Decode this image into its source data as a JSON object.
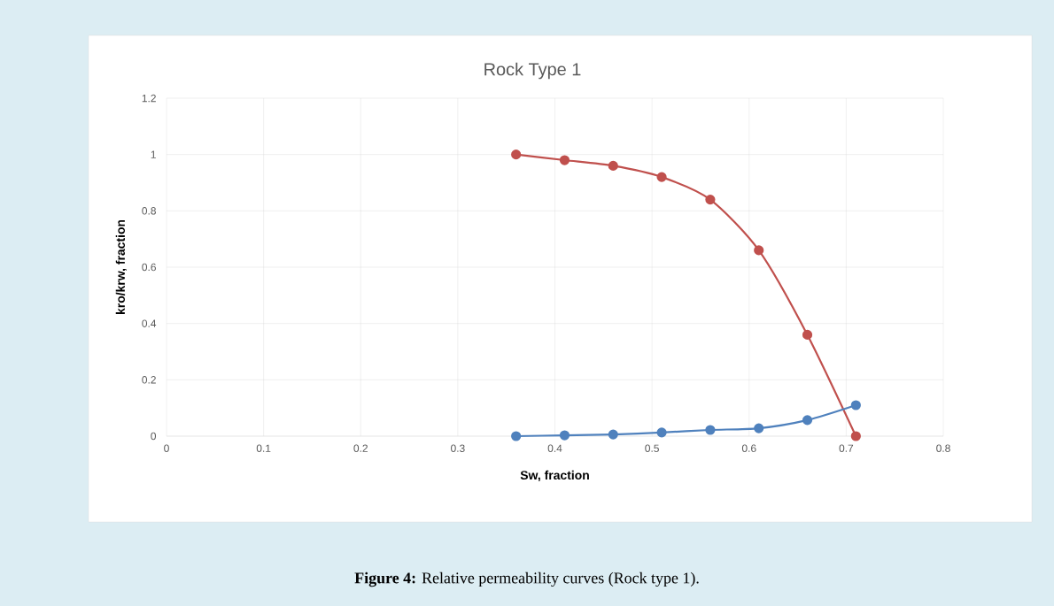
{
  "chart_data": {
    "type": "line",
    "title": "Rock Type 1",
    "xlabel": "Sw, fraction",
    "ylabel": "kro/krw, fraction",
    "annotations": [
      "**Figure 4:** Relative permeability curves (Rock type 1)."
    ],
    "x": [
      0.36,
      0.41,
      0.46,
      0.51,
      0.56,
      0.61,
      0.66,
      0.71
    ],
    "series": [
      {
        "color": "#c0504d",
        "values": [
          1,
          0.98,
          0.96,
          0.92,
          0.84,
          0.66,
          0.36,
          0
        ]
      },
      {
        "color": "#4f81bd",
        "values": [
          0,
          0.003,
          0.006,
          0.013,
          0.022,
          0.028,
          0.057,
          0.11
        ]
      }
    ],
    "xlim": [
      0,
      0.8
    ],
    "xticks": [
      0,
      0.1,
      0.2,
      0.3,
      0.4,
      0.5,
      0.6,
      0.7,
      0.8
    ],
    "ylim": [
      0,
      1.2
    ],
    "yticks": [
      0,
      0.2,
      0.4,
      0.6,
      0.8,
      1,
      1.2
    ],
    "grid": true,
    "marker": "circle",
    "line_style": "solid"
  }
}
